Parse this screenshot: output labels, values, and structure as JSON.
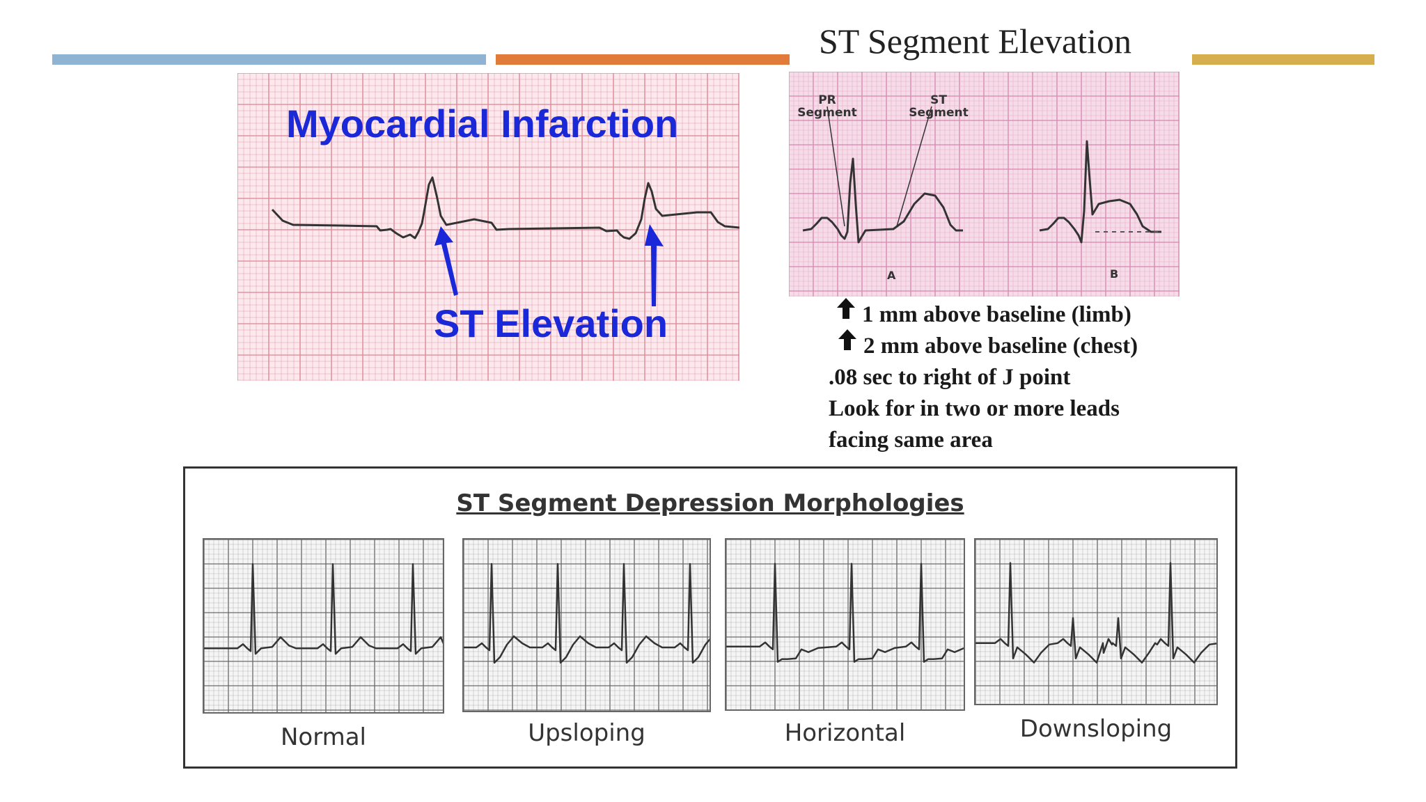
{
  "colors": {
    "bar_blue": "#8fb3d3",
    "bar_orange": "#e07b39",
    "bar_gold": "#d6ad4f",
    "ecg_paper_pink": "#fbe9ee",
    "ecg_grid_red": "#e08a98",
    "annotation_blue": "#1a28d8"
  },
  "mi_panel": {
    "title": "Myocardial Infarction",
    "arrow_label": "ST Elevation"
  },
  "ste_panel": {
    "title": "ST Segment Elevation",
    "pr_label": "PR\nSegment",
    "st_label": "ST\nSegment",
    "lead_a": "A",
    "lead_b": "B"
  },
  "criteria": [
    {
      "text": "1 mm above baseline (limb)",
      "icon": "up-arrow-icon"
    },
    {
      "text": "2 mm above baseline (chest)",
      "icon": "up-arrow-icon"
    },
    {
      "text": ".08 sec to right of J point",
      "icon": null
    },
    {
      "text": "Look for in two or more leads",
      "icon": null
    },
    {
      "text": "facing same area",
      "icon": null
    }
  ],
  "depression": {
    "title": "ST Segment Depression Morphologies",
    "strips": [
      {
        "label": "Normal",
        "morphology": "normal"
      },
      {
        "label": "Upsloping",
        "morphology": "upsloping"
      },
      {
        "label": "Horizontal",
        "morphology": "horizontal"
      },
      {
        "label": "Downsloping",
        "morphology": "downsloping"
      }
    ]
  }
}
